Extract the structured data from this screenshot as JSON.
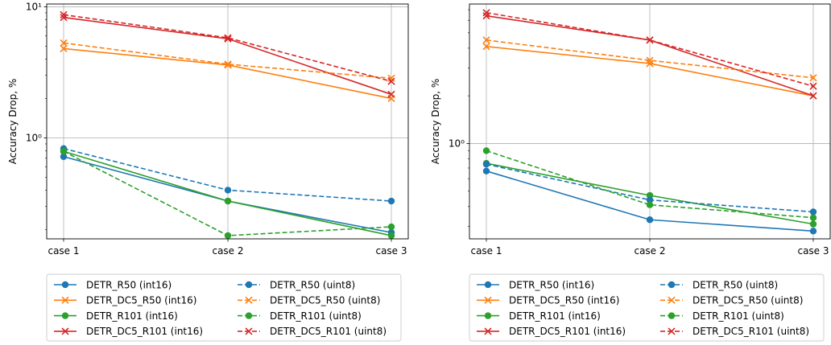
{
  "chart_data": [
    {
      "type": "line",
      "xlabel": "",
      "ylabel": "Accuracy Drop, %",
      "yscale": "log",
      "ylim": [
        0.17,
        10.5
      ],
      "ytick_labels": [
        "10¹",
        "10⁰"
      ],
      "categories": [
        "case 1",
        "case 2",
        "case 3"
      ],
      "grid": true,
      "legend": {
        "placement": "below",
        "columns": 2
      },
      "series": [
        {
          "name": "DETR_R50 (int16)",
          "color": "#1f77b4",
          "marker": "circle",
          "linestyle": "solid",
          "values": [
            0.72,
            0.33,
            0.19
          ]
        },
        {
          "name": "DETR_DC5_R50 (int16)",
          "color": "#ff7f0e",
          "marker": "x",
          "linestyle": "solid",
          "values": [
            4.8,
            3.6,
            2.0
          ]
        },
        {
          "name": "DETR_R101 (int16)",
          "color": "#2ca02c",
          "marker": "circle",
          "linestyle": "solid",
          "values": [
            0.79,
            0.33,
            0.18
          ]
        },
        {
          "name": "DETR_DC5_R101 (int16)",
          "color": "#d62728",
          "marker": "x",
          "linestyle": "solid",
          "values": [
            8.3,
            5.7,
            2.15
          ]
        },
        {
          "name": "DETR_R50 (uint8)",
          "color": "#1f77b4",
          "marker": "circle",
          "linestyle": "dashed",
          "values": [
            0.83,
            0.4,
            0.33
          ]
        },
        {
          "name": "DETR_DC5_R50 (uint8)",
          "color": "#ff7f0e",
          "marker": "x",
          "linestyle": "dashed",
          "values": [
            5.3,
            3.65,
            2.85
          ]
        },
        {
          "name": "DETR_R101 (uint8)",
          "color": "#2ca02c",
          "marker": "circle",
          "linestyle": "dashed",
          "values": [
            0.79,
            0.18,
            0.21
          ]
        },
        {
          "name": "DETR_DC5_R101 (uint8)",
          "color": "#d62728",
          "marker": "x",
          "linestyle": "dashed",
          "values": [
            8.7,
            5.8,
            2.7
          ]
        }
      ]
    },
    {
      "type": "line",
      "xlabel": "",
      "ylabel": "Accuracy Drop, %",
      "yscale": "log",
      "ylim": [
        0.25,
        7.6
      ],
      "ytick_labels": [
        "10⁰"
      ],
      "categories": [
        "case 1",
        "case 2",
        "case 3"
      ],
      "grid": true,
      "legend": {
        "placement": "below",
        "columns": 2
      },
      "series": [
        {
          "name": "DETR_R50 (int16)",
          "color": "#1f77b4",
          "marker": "circle",
          "linestyle": "solid",
          "values": [
            0.67,
            0.33,
            0.28
          ]
        },
        {
          "name": "DETR_DC5_R50 (int16)",
          "color": "#ff7f0e",
          "marker": "x",
          "linestyle": "solid",
          "values": [
            4.1,
            3.2,
            2.0
          ]
        },
        {
          "name": "DETR_R101 (int16)",
          "color": "#2ca02c",
          "marker": "circle",
          "linestyle": "solid",
          "values": [
            0.75,
            0.47,
            0.31
          ]
        },
        {
          "name": "DETR_DC5_R101 (int16)",
          "color": "#d62728",
          "marker": "x",
          "linestyle": "solid",
          "values": [
            6.4,
            4.5,
            2.0
          ]
        },
        {
          "name": "DETR_R50 (uint8)",
          "color": "#1f77b4",
          "marker": "circle",
          "linestyle": "dashed",
          "values": [
            0.74,
            0.44,
            0.37
          ]
        },
        {
          "name": "DETR_DC5_R50 (uint8)",
          "color": "#ff7f0e",
          "marker": "x",
          "linestyle": "dashed",
          "values": [
            4.5,
            3.35,
            2.6
          ]
        },
        {
          "name": "DETR_R101 (uint8)",
          "color": "#2ca02c",
          "marker": "circle",
          "linestyle": "dashed",
          "values": [
            0.9,
            0.41,
            0.34
          ]
        },
        {
          "name": "DETR_DC5_R101 (uint8)",
          "color": "#d62728",
          "marker": "x",
          "linestyle": "dashed",
          "values": [
            6.7,
            4.5,
            2.3
          ]
        }
      ]
    }
  ]
}
